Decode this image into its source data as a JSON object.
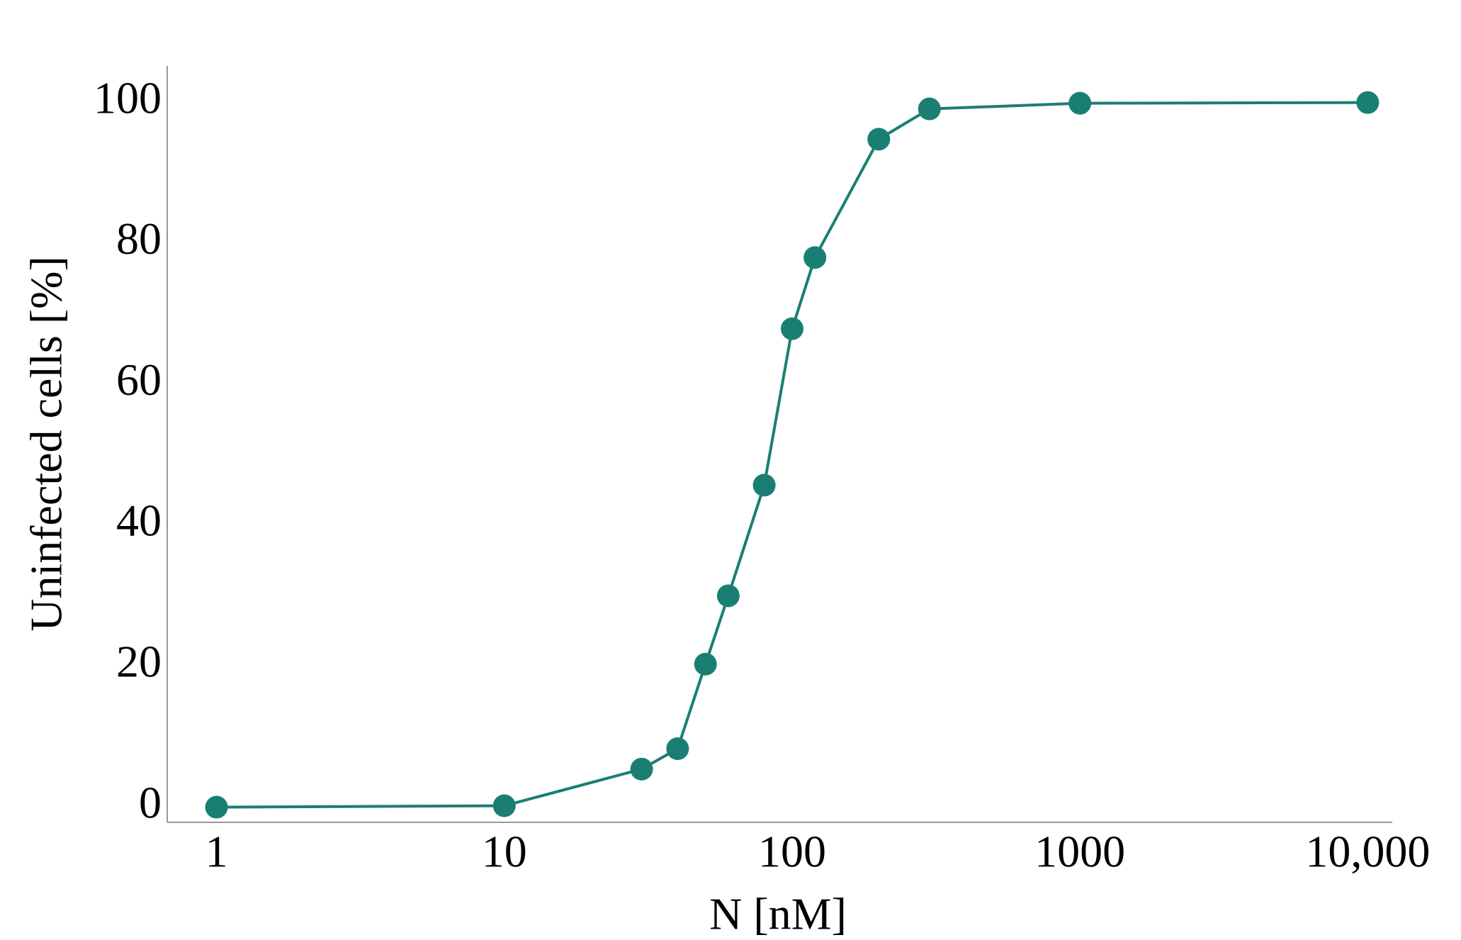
{
  "chart_data": {
    "type": "line",
    "x_label": "N [nM]",
    "y_label": "Uninfected cells [%]",
    "x": [
      1,
      10,
      30,
      40,
      50,
      60,
      80,
      100,
      120,
      200,
      300,
      1000,
      10000
    ],
    "series": [
      {
        "color": "#1a7f72",
        "values": [
          0,
          0.2,
          5.4,
          8.3,
          20.3,
          30,
          45.7,
          67.9,
          78,
          94.8,
          99.1,
          99.9,
          100
        ]
      }
    ],
    "xscale": "log",
    "xlim": [
      0.674,
      12170
    ],
    "xticks": [
      1,
      10,
      100,
      1000,
      {
        "value": 10000,
        "label": "10,000"
      }
    ],
    "ylim": [
      -2.15,
      105.2
    ],
    "yticks": [
      0,
      20,
      40,
      60,
      80,
      100
    ],
    "grid": false
  }
}
